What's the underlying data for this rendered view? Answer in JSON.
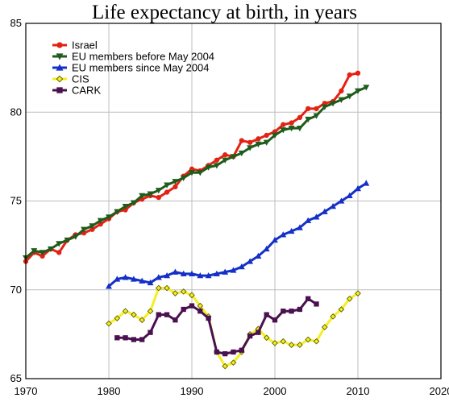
{
  "chart_data": {
    "type": "line",
    "title": "Life expectancy at birth, in years",
    "xlabel": "",
    "ylabel": "",
    "xlim": [
      1970,
      2020
    ],
    "ylim": [
      65,
      85
    ],
    "x_ticks": [
      1970,
      1980,
      1990,
      2000,
      2010,
      2020
    ],
    "y_ticks": [
      65,
      70,
      75,
      80,
      85
    ],
    "grid": true,
    "legend_position": "top-left",
    "series": [
      {
        "name": "Israel",
        "color": "#e32214",
        "marker": "circle",
        "x": [
          1970,
          1971,
          1972,
          1973,
          1974,
          1975,
          1976,
          1977,
          1978,
          1979,
          1980,
          1981,
          1982,
          1983,
          1984,
          1985,
          1986,
          1987,
          1988,
          1989,
          1990,
          1991,
          1992,
          1993,
          1994,
          1995,
          1996,
          1997,
          1998,
          1999,
          2000,
          2001,
          2002,
          2003,
          2004,
          2005,
          2006,
          2007,
          2008,
          2009,
          2010
        ],
        "y": [
          71.6,
          72.1,
          71.9,
          72.3,
          72.1,
          72.8,
          73.1,
          73.2,
          73.4,
          73.7,
          74.0,
          74.4,
          74.5,
          74.9,
          75.1,
          75.3,
          75.2,
          75.5,
          75.8,
          76.4,
          76.8,
          76.7,
          77.0,
          77.3,
          77.6,
          77.5,
          78.4,
          78.3,
          78.5,
          78.7,
          78.9,
          79.3,
          79.4,
          79.7,
          80.2,
          80.2,
          80.5,
          80.6,
          81.2,
          82.1,
          82.2
        ]
      },
      {
        "name": "EU members before May 2004",
        "color": "#1f5c1c",
        "marker": "triangle-down",
        "x": [
          1970,
          1971,
          1972,
          1973,
          1974,
          1975,
          1976,
          1977,
          1978,
          1979,
          1980,
          1981,
          1982,
          1983,
          1984,
          1985,
          1986,
          1987,
          1988,
          1989,
          1990,
          1991,
          1992,
          1993,
          1994,
          1995,
          1996,
          1997,
          1998,
          1999,
          2000,
          2001,
          2002,
          2003,
          2004,
          2005,
          2006,
          2007,
          2008,
          2009,
          2010,
          2011
        ],
        "y": [
          71.8,
          72.2,
          72.1,
          72.3,
          72.6,
          72.8,
          73.0,
          73.4,
          73.6,
          73.9,
          74.1,
          74.4,
          74.7,
          74.9,
          75.3,
          75.4,
          75.6,
          75.9,
          76.1,
          76.3,
          76.6,
          76.6,
          76.9,
          77.0,
          77.3,
          77.5,
          77.7,
          78.0,
          78.2,
          78.3,
          78.7,
          79.0,
          79.1,
          79.1,
          79.6,
          79.8,
          80.3,
          80.5,
          80.7,
          80.9,
          81.2,
          81.4
        ]
      },
      {
        "name": "EU members since May 2004",
        "color": "#1530c8",
        "marker": "triangle-up",
        "x": [
          1980,
          1981,
          1982,
          1983,
          1984,
          1985,
          1986,
          1987,
          1988,
          1989,
          1990,
          1991,
          1992,
          1993,
          1994,
          1995,
          1996,
          1997,
          1998,
          1999,
          2000,
          2001,
          2002,
          2003,
          2004,
          2005,
          2006,
          2007,
          2008,
          2009,
          2010,
          2011
        ],
        "y": [
          70.2,
          70.6,
          70.7,
          70.6,
          70.5,
          70.4,
          70.7,
          70.8,
          71.0,
          70.9,
          70.9,
          70.8,
          70.8,
          70.9,
          71.0,
          71.1,
          71.3,
          71.6,
          71.9,
          72.3,
          72.8,
          73.1,
          73.3,
          73.5,
          73.9,
          74.1,
          74.4,
          74.7,
          75.0,
          75.3,
          75.7,
          76.0
        ]
      },
      {
        "name": "CIS",
        "color": "#f5ee20",
        "marker": "diamond",
        "x": [
          1980,
          1981,
          1982,
          1983,
          1984,
          1985,
          1986,
          1987,
          1988,
          1989,
          1990,
          1991,
          1992,
          1993,
          1994,
          1995,
          1996,
          1997,
          1998,
          1999,
          2000,
          2001,
          2002,
          2003,
          2004,
          2005,
          2006,
          2007,
          2008,
          2009,
          2010
        ],
        "y": [
          68.1,
          68.4,
          68.8,
          68.6,
          68.3,
          68.8,
          70.1,
          70.1,
          69.8,
          69.9,
          69.7,
          69.1,
          68.5,
          66.5,
          65.7,
          65.9,
          66.5,
          67.5,
          67.8,
          67.3,
          67.0,
          67.1,
          66.9,
          66.9,
          67.2,
          67.1,
          67.9,
          68.5,
          68.9,
          69.5,
          69.8
        ]
      },
      {
        "name": "CARK",
        "color": "#4a1050",
        "marker": "square",
        "x": [
          1981,
          1982,
          1983,
          1984,
          1985,
          1986,
          1987,
          1988,
          1989,
          1990,
          1991,
          1992,
          1993,
          1994,
          1995,
          1996,
          1997,
          1998,
          1999,
          2000,
          2001,
          2002,
          2003,
          2004,
          2005
        ],
        "y": [
          67.3,
          67.3,
          67.2,
          67.2,
          67.6,
          68.6,
          68.6,
          68.3,
          68.9,
          69.1,
          68.8,
          68.4,
          66.5,
          66.4,
          66.5,
          66.6,
          67.4,
          67.6,
          68.6,
          68.3,
          68.8,
          68.8,
          68.9,
          69.5,
          69.2
        ]
      }
    ]
  }
}
